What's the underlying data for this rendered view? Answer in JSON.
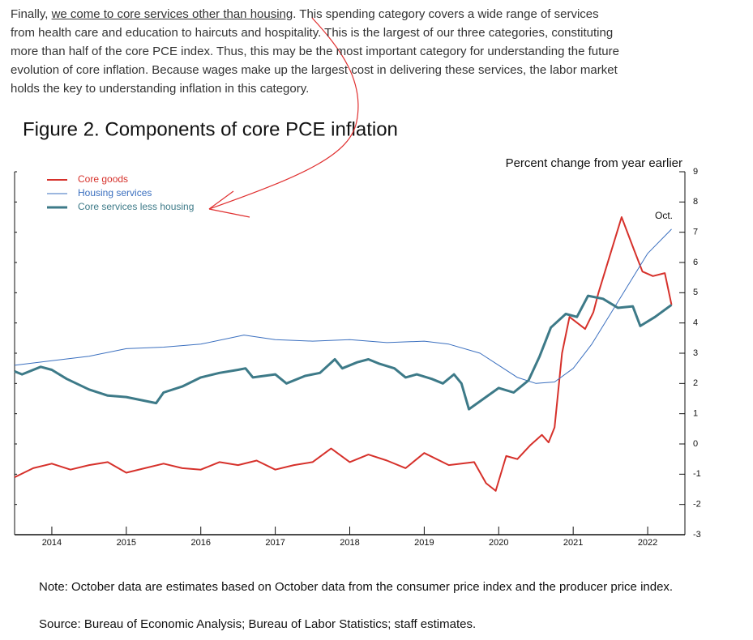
{
  "document": {
    "paragraph": [
      "Finally, ",
      "we come to core services other than housing",
      ". This spending category covers a wide range of services from health care and education to haircuts and hospitality. This is the largest of our three categories, constituting more than half of the core PCE index. Thus, this may be the most important category for understanding the future evolution of core inflation. Because wages make up the largest cost in delivering these services, the labor market holds the key to understanding inflation in this category."
    ],
    "note": "Note: October data are estimates based on October data from the consumer price index and the producer price index.",
    "source": "Source: Bureau of Economic Analysis; Bureau of Labor Statistics; staff estimates."
  },
  "chart_data": {
    "type": "line",
    "title": "Figure 2. Components of core PCE inflation",
    "axis_title": "Percent change from year earlier",
    "annotation": "Oct.",
    "legend": "upper left",
    "xlim": [
      2014,
      2023
    ],
    "xticks": [
      {
        "value": 2014.5,
        "label": "2014"
      },
      {
        "value": 2015.5,
        "label": "2015"
      },
      {
        "value": 2016.5,
        "label": "2016"
      },
      {
        "value": 2017.5,
        "label": "2017"
      },
      {
        "value": 2018.5,
        "label": "2018"
      },
      {
        "value": 2019.5,
        "label": "2019"
      },
      {
        "value": 2020.5,
        "label": "2020"
      },
      {
        "value": 2021.5,
        "label": "2021"
      },
      {
        "value": 2022.5,
        "label": "2022"
      }
    ],
    "ylim": [
      -3,
      9
    ],
    "yticks": [
      -3,
      -2,
      -1,
      0,
      1,
      2,
      3,
      4,
      5,
      6,
      7,
      8,
      9
    ],
    "series": [
      {
        "name": "Core goods",
        "color": "#d6312b",
        "width": 2,
        "x": [
          2014.0,
          2014.25,
          2014.5,
          2014.75,
          2015.0,
          2015.25,
          2015.5,
          2015.75,
          2016.0,
          2016.25,
          2016.5,
          2016.75,
          2017.0,
          2017.25,
          2017.5,
          2017.75,
          2018.0,
          2018.25,
          2018.5,
          2018.75,
          2019.0,
          2019.25,
          2019.5,
          2019.83,
          2020.17,
          2020.33,
          2020.46,
          2020.6,
          2020.75,
          2020.92,
          2021.08,
          2021.17,
          2021.25,
          2021.35,
          2021.45,
          2021.66,
          2021.77,
          2021.84,
          2022.15,
          2022.32,
          2022.43,
          2022.57,
          2022.73,
          2022.82
        ],
        "values": [
          -1.1,
          -0.8,
          -0.65,
          -0.85,
          -0.7,
          -0.6,
          -0.95,
          -0.8,
          -0.65,
          -0.8,
          -0.85,
          -0.6,
          -0.7,
          -0.55,
          -0.85,
          -0.7,
          -0.6,
          -0.15,
          -0.6,
          -0.35,
          -0.55,
          -0.8,
          -0.3,
          -0.7,
          -0.6,
          -1.3,
          -1.55,
          -0.4,
          -0.5,
          -0.05,
          0.3,
          0.05,
          0.55,
          3.0,
          4.2,
          3.8,
          4.35,
          5.0,
          7.5,
          6.4,
          5.7,
          5.55,
          5.65,
          4.6
        ]
      },
      {
        "name": "Housing services",
        "color": "#3a6fbf",
        "width": 1,
        "x": [
          2014.0,
          2014.5,
          2015.0,
          2015.5,
          2016.0,
          2016.5,
          2017.08,
          2017.5,
          2018.0,
          2018.5,
          2019.0,
          2019.5,
          2019.83,
          2020.25,
          2020.5,
          2020.75,
          2021.0,
          2021.25,
          2021.5,
          2021.75,
          2022.0,
          2022.25,
          2022.5,
          2022.82
        ],
        "values": [
          2.6,
          2.75,
          2.9,
          3.15,
          3.2,
          3.3,
          3.6,
          3.45,
          3.4,
          3.45,
          3.35,
          3.4,
          3.3,
          3.0,
          2.6,
          2.2,
          2.0,
          2.05,
          2.5,
          3.3,
          4.3,
          5.3,
          6.3,
          7.1
        ]
      },
      {
        "name": "Core services less housing",
        "color": "#3d7a88",
        "width": 3,
        "x": [
          2014.0,
          2014.1,
          2014.35,
          2014.5,
          2014.7,
          2015.0,
          2015.25,
          2015.5,
          2015.9,
          2016.0,
          2016.25,
          2016.5,
          2016.75,
          2017.0,
          2017.1,
          2017.2,
          2017.5,
          2017.65,
          2017.9,
          2018.1,
          2018.3,
          2018.4,
          2018.6,
          2018.75,
          2018.9,
          2019.1,
          2019.25,
          2019.4,
          2019.6,
          2019.75,
          2019.9,
          2020.0,
          2020.1,
          2020.3,
          2020.5,
          2020.7,
          2020.9,
          2021.05,
          2021.2,
          2021.4,
          2021.55,
          2021.7,
          2021.9,
          2022.1,
          2022.3,
          2022.4,
          2022.6,
          2022.82
        ],
        "values": [
          2.4,
          2.3,
          2.55,
          2.45,
          2.15,
          1.8,
          1.6,
          1.55,
          1.35,
          1.7,
          1.9,
          2.2,
          2.35,
          2.45,
          2.5,
          2.2,
          2.3,
          2.0,
          2.25,
          2.35,
          2.8,
          2.5,
          2.7,
          2.8,
          2.65,
          2.5,
          2.2,
          2.3,
          2.15,
          2.0,
          2.3,
          2.0,
          1.15,
          1.5,
          1.85,
          1.7,
          2.1,
          2.9,
          3.85,
          4.3,
          4.2,
          4.9,
          4.8,
          4.5,
          4.55,
          3.9,
          4.2,
          4.6
        ]
      }
    ]
  }
}
